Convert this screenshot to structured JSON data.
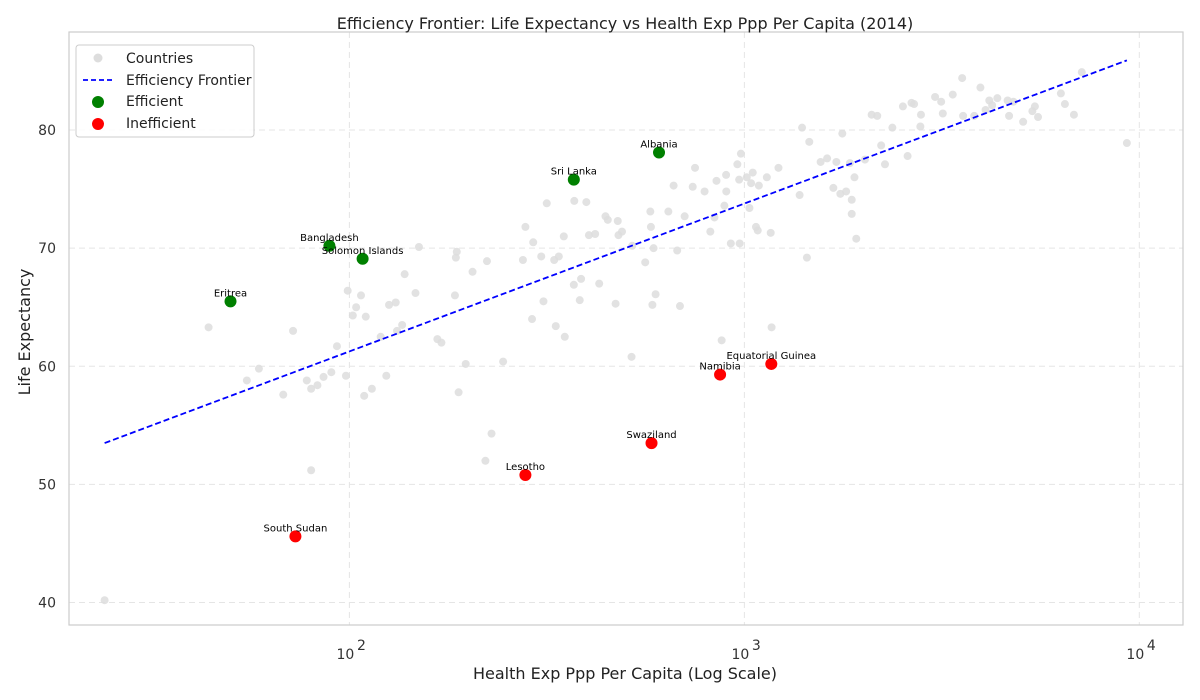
{
  "chart_data": {
    "type": "scatter",
    "title": "Efficiency Frontier: Life Expectancy vs Health Exp Ppp Per Capita (2014)",
    "xlabel": "Health Exp Ppp Per Capita (Log Scale)",
    "ylabel": "Life Expectancy",
    "xscale": "log",
    "xlim": [
      19.5,
      12900
    ],
    "ylim": [
      38.1,
      88.3
    ],
    "xticks": [
      {
        "value": 100,
        "base": "10",
        "exp": "2"
      },
      {
        "value": 1000,
        "base": "10",
        "exp": "3"
      },
      {
        "value": 10000,
        "base": "10",
        "exp": "4"
      }
    ],
    "yticks": [
      40,
      50,
      60,
      70,
      80
    ],
    "grid": true,
    "legend_position": "top-left",
    "colors": {
      "countries": "#dddddd",
      "frontier": "#0000ff",
      "efficient": "#008000",
      "inefficient": "#ff0000",
      "grid": "#e5e5e5",
      "spine": "#cccccc"
    },
    "legend": [
      {
        "key": "countries",
        "label": "Countries"
      },
      {
        "key": "frontier",
        "label": "Efficiency Frontier"
      },
      {
        "key": "efficient",
        "label": "Efficient"
      },
      {
        "key": "inefficient",
        "label": "Inefficient"
      }
    ],
    "frontier": {
      "x": [
        24,
        9300
      ],
      "y": [
        53.5,
        85.9
      ]
    },
    "efficient": [
      {
        "label": "Albania",
        "x": 608,
        "y": 78.1
      },
      {
        "label": "Sri Lanka",
        "x": 370,
        "y": 75.8
      },
      {
        "label": "Bangladesh",
        "x": 89,
        "y": 70.2
      },
      {
        "label": "Solomon Islands",
        "x": 108,
        "y": 69.1
      },
      {
        "label": "Eritrea",
        "x": 50,
        "y": 65.5
      }
    ],
    "inefficient": [
      {
        "label": "Equatorial Guinea",
        "x": 1170,
        "y": 60.2
      },
      {
        "label": "Namibia",
        "x": 868,
        "y": 59.3
      },
      {
        "label": "Swaziland",
        "x": 582,
        "y": 53.5
      },
      {
        "label": "Lesotho",
        "x": 279,
        "y": 50.8
      },
      {
        "label": "South Sudan",
        "x": 73,
        "y": 45.6
      }
    ],
    "countries": [
      [
        24,
        40.2
      ],
      [
        44,
        63.3
      ],
      [
        55,
        58.8
      ],
      [
        59,
        59.8
      ],
      [
        68,
        57.6
      ],
      [
        72,
        63
      ],
      [
        78,
        58.8
      ],
      [
        80,
        51.2
      ],
      [
        80,
        58.1
      ],
      [
        83,
        58.4
      ],
      [
        86,
        59.1
      ],
      [
        90,
        59.5
      ],
      [
        93,
        61.7
      ],
      [
        98,
        59.2
      ],
      [
        99,
        66.4
      ],
      [
        102,
        64.3
      ],
      [
        104,
        65
      ],
      [
        107,
        66
      ],
      [
        109,
        57.5
      ],
      [
        110,
        64.2
      ],
      [
        114,
        58.1
      ],
      [
        120,
        62.5
      ],
      [
        124,
        59.2
      ],
      [
        126,
        65.2
      ],
      [
        131,
        65.4
      ],
      [
        132,
        63
      ],
      [
        136,
        63.5
      ],
      [
        138,
        67.8
      ],
      [
        147,
        66.2
      ],
      [
        150,
        70.1
      ],
      [
        167,
        62.3
      ],
      [
        171,
        62
      ],
      [
        185,
        66
      ],
      [
        186,
        69.2
      ],
      [
        187,
        69.7
      ],
      [
        189,
        57.8
      ],
      [
        197,
        60.2
      ],
      [
        205,
        68
      ],
      [
        221,
        52
      ],
      [
        223,
        68.9
      ],
      [
        229,
        54.3
      ],
      [
        245,
        60.4
      ],
      [
        275,
        69
      ],
      [
        279,
        71.8
      ],
      [
        290,
        64
      ],
      [
        292,
        70.5
      ],
      [
        306,
        69.3
      ],
      [
        310,
        65.5
      ],
      [
        316,
        73.8
      ],
      [
        330,
        69
      ],
      [
        333,
        63.4
      ],
      [
        339,
        69.3
      ],
      [
        349,
        71
      ],
      [
        351,
        62.5
      ],
      [
        370,
        66.9
      ],
      [
        371,
        74
      ],
      [
        383,
        65.6
      ],
      [
        386,
        67.4
      ],
      [
        398,
        73.9
      ],
      [
        404,
        71.1
      ],
      [
        419,
        71.2
      ],
      [
        429,
        67
      ],
      [
        445,
        72.7
      ],
      [
        451,
        72.4
      ],
      [
        472,
        65.3
      ],
      [
        478,
        72.3
      ],
      [
        480,
        71.1
      ],
      [
        490,
        71.4
      ],
      [
        518,
        60.8
      ],
      [
        520,
        70.2
      ],
      [
        561,
        68.8
      ],
      [
        578,
        73.1
      ],
      [
        580,
        71.8
      ],
      [
        585,
        65.2
      ],
      [
        589,
        70
      ],
      [
        596,
        66.1
      ],
      [
        642,
        73.1
      ],
      [
        662,
        75.3
      ],
      [
        676,
        69.8
      ],
      [
        687,
        65.1
      ],
      [
        706,
        72.7
      ],
      [
        740,
        75.2
      ],
      [
        750,
        76.8
      ],
      [
        793,
        74.8
      ],
      [
        820,
        71.4
      ],
      [
        840,
        72.6
      ],
      [
        850,
        75.7
      ],
      [
        876,
        62.2
      ],
      [
        890,
        73.6
      ],
      [
        899,
        76.2
      ],
      [
        900,
        74.8
      ],
      [
        924,
        70.4
      ],
      [
        960,
        77.1
      ],
      [
        970,
        75.8
      ],
      [
        973,
        70.4
      ],
      [
        980,
        78
      ],
      [
        1014,
        76
      ],
      [
        1030,
        73.4
      ],
      [
        1040,
        75.5
      ],
      [
        1050,
        76.4
      ],
      [
        1070,
        71.8
      ],
      [
        1081,
        71.5
      ],
      [
        1088,
        75.3
      ],
      [
        1140,
        76
      ],
      [
        1166,
        71.3
      ],
      [
        1172,
        63.3
      ],
      [
        1220,
        76.8
      ],
      [
        1380,
        74.5
      ],
      [
        1400,
        80.2
      ],
      [
        1440,
        69.2
      ],
      [
        1460,
        79
      ],
      [
        1560,
        77.3
      ],
      [
        1620,
        77.6
      ],
      [
        1680,
        75.1
      ],
      [
        1710,
        77.3
      ],
      [
        1750,
        74.6
      ],
      [
        1770,
        79.7
      ],
      [
        1810,
        74.8
      ],
      [
        1850,
        77.2
      ],
      [
        1870,
        74.1
      ],
      [
        1870,
        72.9
      ],
      [
        1900,
        76
      ],
      [
        1920,
        70.8
      ],
      [
        2020,
        77.5
      ],
      [
        2100,
        81.3
      ],
      [
        2170,
        81.2
      ],
      [
        2220,
        78.7
      ],
      [
        2270,
        77.1
      ],
      [
        2370,
        80.2
      ],
      [
        2520,
        82
      ],
      [
        2590,
        77.8
      ],
      [
        2650,
        82.3
      ],
      [
        2690,
        82.2
      ],
      [
        2790,
        80.3
      ],
      [
        2800,
        81.3
      ],
      [
        3040,
        82.8
      ],
      [
        3150,
        82.4
      ],
      [
        3180,
        81.4
      ],
      [
        3370,
        83
      ],
      [
        3560,
        84.4
      ],
      [
        3580,
        81.2
      ],
      [
        3820,
        81.2
      ],
      [
        3960,
        83.6
      ],
      [
        4080,
        81.7
      ],
      [
        4170,
        82.5
      ],
      [
        4240,
        82.1
      ],
      [
        4370,
        82.7
      ],
      [
        4640,
        82.5
      ],
      [
        4680,
        81.2
      ],
      [
        4800,
        82.4
      ],
      [
        5080,
        80.7
      ],
      [
        5360,
        81.6
      ],
      [
        5440,
        82
      ],
      [
        5540,
        81.1
      ],
      [
        6330,
        83.1
      ],
      [
        6480,
        82.2
      ],
      [
        6830,
        81.3
      ],
      [
        7150,
        84.9
      ],
      [
        9300,
        78.9
      ]
    ]
  }
}
